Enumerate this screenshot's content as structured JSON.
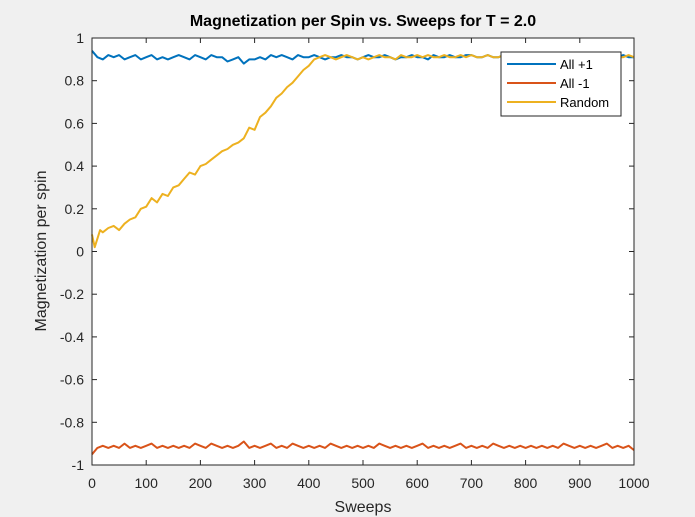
{
  "chart_data": {
    "type": "line",
    "title": "Magnetization per Spin vs. Sweeps for T = 2.0",
    "xlabel": "Sweeps",
    "ylabel": "Magnetization per spin",
    "xlim": [
      0,
      1000
    ],
    "ylim": [
      -1,
      1
    ],
    "xticks": [
      0,
      100,
      200,
      300,
      400,
      500,
      600,
      700,
      800,
      900,
      1000
    ],
    "yticks": [
      -1,
      -0.8,
      -0.6,
      -0.4,
      -0.2,
      0,
      0.2,
      0.4,
      0.6,
      0.8,
      1
    ],
    "ytick_labels": [
      "-1",
      "-0.8",
      "-0.6",
      "-0.4",
      "-0.2",
      "0",
      "0.2",
      "0.4",
      "0.6",
      "0.8",
      "1"
    ],
    "grid": false,
    "legend_position": "top-right",
    "series": [
      {
        "name": "All +1",
        "color": "#0072bd",
        "x": [
          0,
          10,
          20,
          30,
          40,
          50,
          60,
          70,
          80,
          90,
          100,
          110,
          120,
          130,
          140,
          150,
          160,
          170,
          180,
          190,
          200,
          210,
          220,
          230,
          240,
          250,
          260,
          270,
          280,
          290,
          300,
          310,
          320,
          330,
          340,
          350,
          360,
          370,
          380,
          390,
          400,
          410,
          420,
          430,
          440,
          450,
          460,
          470,
          480,
          490,
          500,
          510,
          520,
          530,
          540,
          550,
          560,
          570,
          580,
          590,
          600,
          610,
          620,
          630,
          640,
          650,
          660,
          670,
          680,
          690,
          700,
          710,
          720,
          730,
          740,
          750,
          760,
          770,
          780,
          790,
          800,
          810,
          820,
          830,
          840,
          850,
          860,
          870,
          880,
          890,
          900,
          910,
          920,
          930,
          940,
          950,
          960,
          970,
          980,
          990,
          1000
        ],
        "y": [
          0.94,
          0.91,
          0.9,
          0.92,
          0.91,
          0.92,
          0.9,
          0.91,
          0.92,
          0.9,
          0.91,
          0.92,
          0.9,
          0.91,
          0.9,
          0.91,
          0.92,
          0.91,
          0.9,
          0.92,
          0.91,
          0.9,
          0.92,
          0.91,
          0.91,
          0.89,
          0.9,
          0.91,
          0.88,
          0.9,
          0.9,
          0.91,
          0.9,
          0.92,
          0.91,
          0.92,
          0.91,
          0.9,
          0.92,
          0.91,
          0.91,
          0.92,
          0.91,
          0.9,
          0.91,
          0.91,
          0.92,
          0.91,
          0.91,
          0.9,
          0.91,
          0.92,
          0.91,
          0.91,
          0.92,
          0.91,
          0.9,
          0.91,
          0.91,
          0.92,
          0.91,
          0.91,
          0.9,
          0.92,
          0.91,
          0.91,
          0.92,
          0.91,
          0.91,
          0.92,
          0.92,
          0.91,
          0.91,
          0.92,
          0.91,
          0.91,
          0.92,
          0.91,
          0.91,
          0.92,
          0.91,
          0.91,
          0.92,
          0.91,
          0.9,
          0.91,
          0.92,
          0.91,
          0.91,
          0.92,
          0.91,
          0.91,
          0.92,
          0.91,
          0.91,
          0.91,
          0.92,
          0.91,
          0.92,
          0.91,
          0.91
        ]
      },
      {
        "name": "All -1",
        "color": "#d95319",
        "x": [
          0,
          10,
          20,
          30,
          40,
          50,
          60,
          70,
          80,
          90,
          100,
          110,
          120,
          130,
          140,
          150,
          160,
          170,
          180,
          190,
          200,
          210,
          220,
          230,
          240,
          250,
          260,
          270,
          280,
          290,
          300,
          310,
          320,
          330,
          340,
          350,
          360,
          370,
          380,
          390,
          400,
          410,
          420,
          430,
          440,
          450,
          460,
          470,
          480,
          490,
          500,
          510,
          520,
          530,
          540,
          550,
          560,
          570,
          580,
          590,
          600,
          610,
          620,
          630,
          640,
          650,
          660,
          670,
          680,
          690,
          700,
          710,
          720,
          730,
          740,
          750,
          760,
          770,
          780,
          790,
          800,
          810,
          820,
          830,
          840,
          850,
          860,
          870,
          880,
          890,
          900,
          910,
          920,
          930,
          940,
          950,
          960,
          970,
          980,
          990,
          1000
        ],
        "y": [
          -0.95,
          -0.92,
          -0.91,
          -0.92,
          -0.91,
          -0.92,
          -0.9,
          -0.92,
          -0.91,
          -0.92,
          -0.91,
          -0.9,
          -0.92,
          -0.91,
          -0.92,
          -0.91,
          -0.92,
          -0.91,
          -0.92,
          -0.9,
          -0.91,
          -0.92,
          -0.9,
          -0.91,
          -0.92,
          -0.91,
          -0.92,
          -0.91,
          -0.89,
          -0.92,
          -0.91,
          -0.92,
          -0.91,
          -0.9,
          -0.92,
          -0.91,
          -0.92,
          -0.9,
          -0.91,
          -0.92,
          -0.91,
          -0.92,
          -0.91,
          -0.92,
          -0.9,
          -0.91,
          -0.92,
          -0.91,
          -0.92,
          -0.91,
          -0.92,
          -0.91,
          -0.92,
          -0.9,
          -0.91,
          -0.92,
          -0.91,
          -0.92,
          -0.91,
          -0.92,
          -0.91,
          -0.9,
          -0.92,
          -0.91,
          -0.92,
          -0.91,
          -0.92,
          -0.91,
          -0.9,
          -0.92,
          -0.91,
          -0.92,
          -0.91,
          -0.92,
          -0.9,
          -0.91,
          -0.92,
          -0.91,
          -0.92,
          -0.91,
          -0.92,
          -0.91,
          -0.92,
          -0.91,
          -0.92,
          -0.91,
          -0.92,
          -0.9,
          -0.91,
          -0.92,
          -0.91,
          -0.92,
          -0.91,
          -0.92,
          -0.91,
          -0.9,
          -0.92,
          -0.91,
          -0.92,
          -0.91,
          -0.93
        ]
      },
      {
        "name": "Random",
        "color": "#edb120",
        "x": [
          0,
          5,
          10,
          15,
          20,
          30,
          40,
          50,
          60,
          70,
          80,
          90,
          100,
          110,
          120,
          130,
          140,
          150,
          160,
          170,
          180,
          190,
          200,
          210,
          220,
          230,
          240,
          250,
          260,
          270,
          280,
          290,
          300,
          310,
          320,
          330,
          340,
          350,
          360,
          370,
          380,
          390,
          400,
          410,
          420,
          430,
          440,
          450,
          460,
          470,
          480,
          490,
          500,
          510,
          520,
          530,
          540,
          550,
          560,
          570,
          580,
          590,
          600,
          610,
          620,
          630,
          640,
          650,
          660,
          670,
          680,
          690,
          700,
          710,
          720,
          730,
          740,
          750,
          760,
          770,
          780,
          790,
          800,
          810,
          820,
          830,
          840,
          850,
          860,
          870,
          880,
          890,
          900,
          910,
          920,
          930,
          940,
          950,
          960,
          970,
          980,
          990,
          1000
        ],
        "y": [
          0.08,
          0.02,
          0.06,
          0.1,
          0.09,
          0.11,
          0.12,
          0.1,
          0.13,
          0.15,
          0.16,
          0.2,
          0.21,
          0.25,
          0.23,
          0.27,
          0.26,
          0.3,
          0.31,
          0.34,
          0.37,
          0.36,
          0.4,
          0.41,
          0.43,
          0.45,
          0.47,
          0.48,
          0.5,
          0.51,
          0.53,
          0.58,
          0.57,
          0.63,
          0.65,
          0.68,
          0.72,
          0.74,
          0.77,
          0.79,
          0.82,
          0.85,
          0.87,
          0.9,
          0.91,
          0.92,
          0.91,
          0.9,
          0.91,
          0.92,
          0.91,
          0.9,
          0.91,
          0.9,
          0.91,
          0.92,
          0.91,
          0.91,
          0.9,
          0.92,
          0.91,
          0.91,
          0.92,
          0.91,
          0.92,
          0.91,
          0.91,
          0.92,
          0.91,
          0.91,
          0.92,
          0.91,
          0.92,
          0.91,
          0.91,
          0.92,
          0.91,
          0.91,
          0.92,
          0.91,
          0.91,
          0.92,
          0.91,
          0.91,
          0.92,
          0.91,
          0.91,
          0.92,
          0.91,
          0.91,
          0.92,
          0.91,
          0.91,
          0.92,
          0.91,
          0.92,
          0.91,
          0.91,
          0.92,
          0.91,
          0.91,
          0.92,
          0.91
        ]
      }
    ]
  }
}
